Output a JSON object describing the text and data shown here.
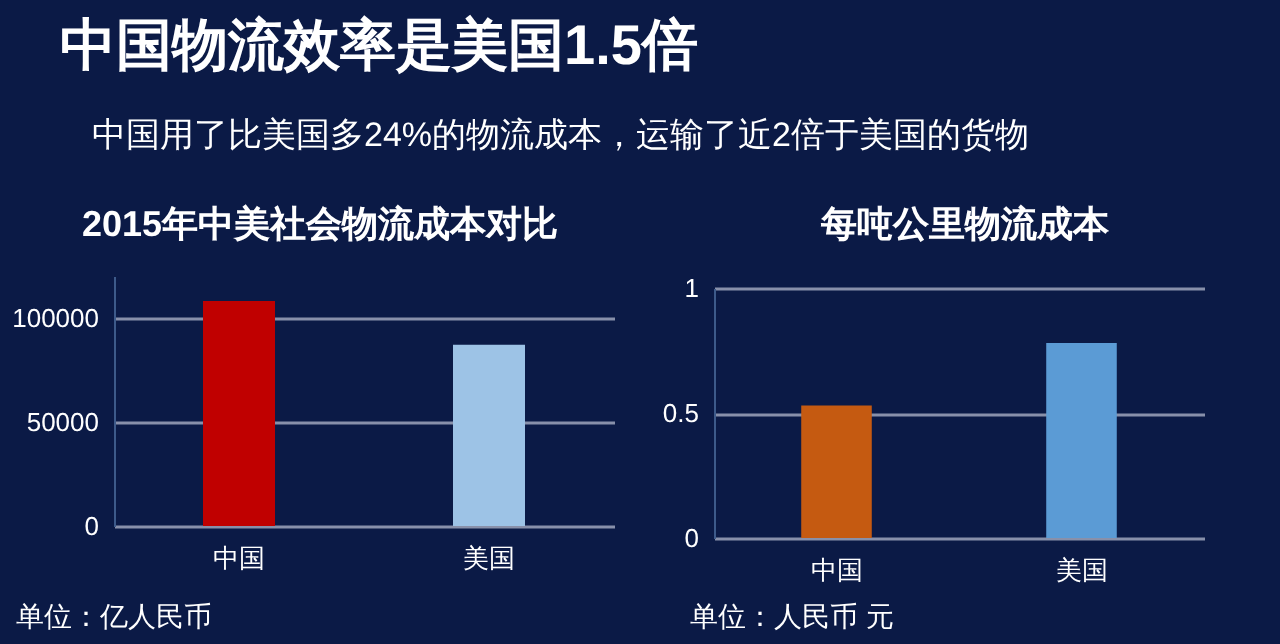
{
  "chart_data": [
    {
      "type": "other",
      "title": "中国物流效率是美国1.5倍",
      "subtitle": "中国用了比美国多24%的物流成本，运输了近2倍于美国的货物"
    },
    {
      "type": "bar",
      "title": "2015年中美社会物流成本对比",
      "categories": [
        "中国",
        "美国"
      ],
      "values": [
        108000,
        87000
      ],
      "colors": [
        "#c00000",
        "#9dc3e6"
      ],
      "ylim": [
        0,
        120000
      ],
      "yticks": [
        0,
        50000,
        100000
      ],
      "grid": "y",
      "annotations": [
        "单位：亿人民币"
      ]
    },
    {
      "type": "bar",
      "title": "每吨公里物流成本",
      "categories": [
        "中国",
        "美国"
      ],
      "values": [
        0.53,
        0.78
      ],
      "colors": [
        "#c55a11",
        "#5b9bd5"
      ],
      "ylim": [
        0,
        1
      ],
      "yticks": [
        0,
        0.5,
        1
      ],
      "grid": "y",
      "annotations": [
        "单位：人民币 元"
      ]
    }
  ]
}
